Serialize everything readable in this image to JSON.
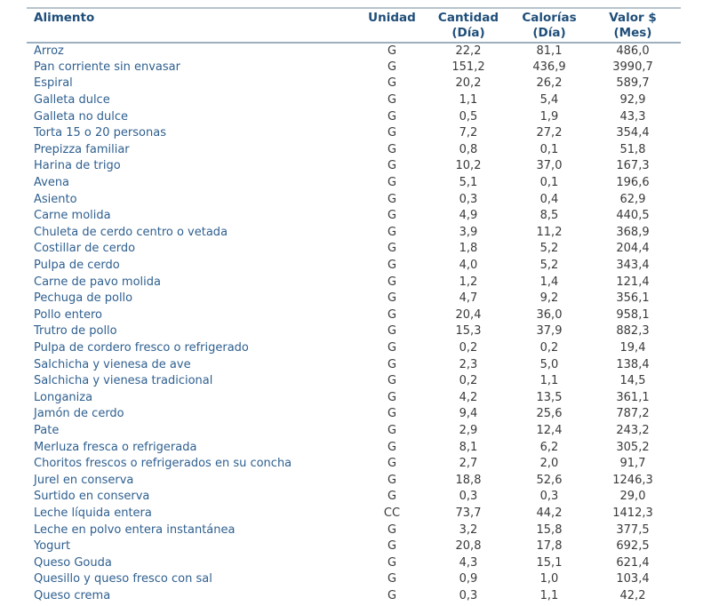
{
  "table": {
    "columns": [
      {
        "line1": "Alimento",
        "line2": ""
      },
      {
        "line1": "Unidad",
        "line2": ""
      },
      {
        "line1": "Cantidad",
        "line2": "(Día)"
      },
      {
        "line1": "Calorías",
        "line2": "(Día)"
      },
      {
        "line1": "Valor $",
        "line2": "(Mes)"
      }
    ],
    "rows": [
      {
        "name": "Arroz",
        "unit": "G",
        "qty": "22,2",
        "cal": "81,1",
        "val": "486,0"
      },
      {
        "name": "Pan corriente sin envasar",
        "unit": "G",
        "qty": "151,2",
        "cal": "436,9",
        "val": "3990,7"
      },
      {
        "name": "Espiral",
        "unit": "G",
        "qty": "20,2",
        "cal": "26,2",
        "val": "589,7"
      },
      {
        "name": "Galleta dulce",
        "unit": "G",
        "qty": "1,1",
        "cal": "5,4",
        "val": "92,9"
      },
      {
        "name": "Galleta no dulce",
        "unit": "G",
        "qty": "0,5",
        "cal": "1,9",
        "val": "43,3"
      },
      {
        "name": "Torta 15 o 20 personas",
        "unit": "G",
        "qty": "7,2",
        "cal": "27,2",
        "val": "354,4"
      },
      {
        "name": "Prepizza familiar",
        "unit": "G",
        "qty": "0,8",
        "cal": "0,1",
        "val": "51,8"
      },
      {
        "name": "Harina de trigo",
        "unit": "G",
        "qty": "10,2",
        "cal": "37,0",
        "val": "167,3"
      },
      {
        "name": "Avena",
        "unit": "G",
        "qty": "5,1",
        "cal": "0,1",
        "val": "196,6"
      },
      {
        "name": "Asiento",
        "unit": "G",
        "qty": "0,3",
        "cal": "0,4",
        "val": "62,9"
      },
      {
        "name": "Carne molida",
        "unit": "G",
        "qty": "4,9",
        "cal": "8,5",
        "val": "440,5"
      },
      {
        "name": "Chuleta de cerdo centro o vetada",
        "unit": "G",
        "qty": "3,9",
        "cal": "11,2",
        "val": "368,9"
      },
      {
        "name": "Costillar de cerdo",
        "unit": "G",
        "qty": "1,8",
        "cal": "5,2",
        "val": "204,4"
      },
      {
        "name": "Pulpa de cerdo",
        "unit": "G",
        "qty": "4,0",
        "cal": "5,2",
        "val": "343,4"
      },
      {
        "name": "Carne de pavo molida",
        "unit": "G",
        "qty": "1,2",
        "cal": "1,4",
        "val": "121,4"
      },
      {
        "name": "Pechuga de pollo",
        "unit": "G",
        "qty": "4,7",
        "cal": "9,2",
        "val": "356,1"
      },
      {
        "name": "Pollo entero",
        "unit": "G",
        "qty": "20,4",
        "cal": "36,0",
        "val": "958,1"
      },
      {
        "name": "Trutro de pollo",
        "unit": "G",
        "qty": "15,3",
        "cal": "37,9",
        "val": "882,3"
      },
      {
        "name": "Pulpa de cordero fresco o refrigerado",
        "unit": "G",
        "qty": "0,2",
        "cal": "0,2",
        "val": "19,4"
      },
      {
        "name": "Salchicha y vienesa de ave",
        "unit": "G",
        "qty": "2,3",
        "cal": "5,0",
        "val": "138,4"
      },
      {
        "name": "Salchicha y vienesa tradicional",
        "unit": "G",
        "qty": "0,2",
        "cal": "1,1",
        "val": "14,5"
      },
      {
        "name": "Longaniza",
        "unit": "G",
        "qty": "4,2",
        "cal": "13,5",
        "val": "361,1"
      },
      {
        "name": "Jamón de cerdo",
        "unit": "G",
        "qty": "9,4",
        "cal": "25,6",
        "val": "787,2"
      },
      {
        "name": "Pate",
        "unit": "G",
        "qty": "2,9",
        "cal": "12,4",
        "val": "243,2"
      },
      {
        "name": "Merluza fresca o refrigerada",
        "unit": "G",
        "qty": "8,1",
        "cal": "6,2",
        "val": "305,2"
      },
      {
        "name": "Choritos frescos o refrigerados en su concha",
        "unit": "G",
        "qty": "2,7",
        "cal": "2,0",
        "val": "91,7"
      },
      {
        "name": "Jurel en conserva",
        "unit": "G",
        "qty": "18,8",
        "cal": "52,6",
        "val": "1246,3"
      },
      {
        "name": "Surtido en conserva",
        "unit": "G",
        "qty": "0,3",
        "cal": "0,3",
        "val": "29,0"
      },
      {
        "name": "Leche líquida entera",
        "unit": "CC",
        "qty": "73,7",
        "cal": "44,2",
        "val": "1412,3"
      },
      {
        "name": "Leche en polvo entera instantánea",
        "unit": "G",
        "qty": "3,2",
        "cal": "15,8",
        "val": "377,5"
      },
      {
        "name": "Yogurt",
        "unit": "G",
        "qty": "20,8",
        "cal": "17,8",
        "val": "692,5"
      },
      {
        "name": "Queso Gouda",
        "unit": "G",
        "qty": "4,3",
        "cal": "15,1",
        "val": "621,4"
      },
      {
        "name": "Quesillo y queso fresco con sal",
        "unit": "G",
        "qty": "0,9",
        "cal": "1,0",
        "val": "103,4"
      },
      {
        "name": "Queso crema",
        "unit": "G",
        "qty": "0,3",
        "cal": "1,1",
        "val": "42,2"
      }
    ],
    "colors": {
      "header_text": "#1F4E79",
      "item_text": "#2E5F8F",
      "value_text": "#3a3a3a",
      "rule_top": "#b6c3cc",
      "rule_header_bottom": "#9db0bf"
    }
  }
}
